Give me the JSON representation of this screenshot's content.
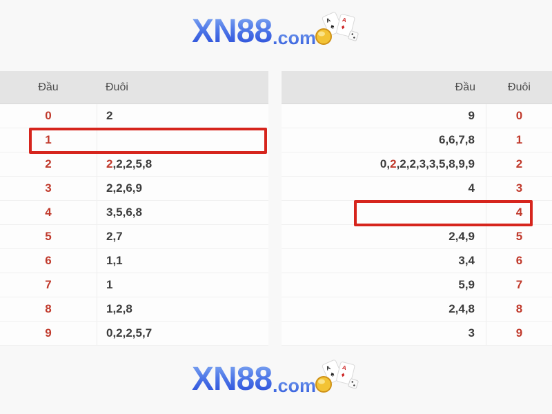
{
  "logo": {
    "brand": "XN88",
    "suffix": ".com",
    "icon": "cards-coin-dice-icon",
    "brand_gradient_top": "#8fb6f4",
    "brand_gradient_bottom": "#1e3fd4",
    "suffix_color": "#4a74da"
  },
  "colors": {
    "page_bg": "#f8f8f8",
    "header_bg": "#e4e4e4",
    "header_text": "#4d4d4d",
    "digit_red": "#c0392b",
    "value_text": "#3c3c3c",
    "highlight_border": "#d6251d"
  },
  "left_table": {
    "dau_header": "Đầu",
    "duoi_header": "Đuôi",
    "rows": [
      {
        "digit": "0",
        "pre": "2",
        "red": "",
        "post": "",
        "highlight": false
      },
      {
        "digit": "1",
        "pre": "",
        "red": "",
        "post": "",
        "highlight": true
      },
      {
        "digit": "2",
        "pre": "",
        "red": "2",
        "post": ",2,2,5,8",
        "highlight": false
      },
      {
        "digit": "3",
        "pre": "2,2,6,9",
        "red": "",
        "post": "",
        "highlight": false
      },
      {
        "digit": "4",
        "pre": "3,5,6,8",
        "red": "",
        "post": "",
        "highlight": false
      },
      {
        "digit": "5",
        "pre": "2,7",
        "red": "",
        "post": "",
        "highlight": false
      },
      {
        "digit": "6",
        "pre": "1,1",
        "red": "",
        "post": "",
        "highlight": false
      },
      {
        "digit": "7",
        "pre": "1",
        "red": "",
        "post": "",
        "highlight": false
      },
      {
        "digit": "8",
        "pre": "1,2,8",
        "red": "",
        "post": "",
        "highlight": false
      },
      {
        "digit": "9",
        "pre": "0,2,2,5,7",
        "red": "",
        "post": "",
        "highlight": false
      }
    ]
  },
  "right_table": {
    "dau_header": "Đầu",
    "duoi_header": "Đuôi",
    "rows": [
      {
        "digit": "0",
        "pre": "9",
        "red": "",
        "post": "",
        "highlight": false
      },
      {
        "digit": "1",
        "pre": "6,6,7,8",
        "red": "",
        "post": "",
        "highlight": false
      },
      {
        "digit": "2",
        "pre": "0,",
        "red": "2",
        "post": ",2,2,3,3,5,8,9,9",
        "highlight": false
      },
      {
        "digit": "3",
        "pre": "4",
        "red": "",
        "post": "",
        "highlight": false
      },
      {
        "digit": "4",
        "pre": "",
        "red": "",
        "post": "",
        "highlight": true
      },
      {
        "digit": "5",
        "pre": "2,4,9",
        "red": "",
        "post": "",
        "highlight": false
      },
      {
        "digit": "6",
        "pre": "3,4",
        "red": "",
        "post": "",
        "highlight": false
      },
      {
        "digit": "7",
        "pre": "5,9",
        "red": "",
        "post": "",
        "highlight": false
      },
      {
        "digit": "8",
        "pre": "2,4,8",
        "red": "",
        "post": "",
        "highlight": false
      },
      {
        "digit": "9",
        "pre": "3",
        "red": "",
        "post": "",
        "highlight": false
      }
    ]
  }
}
